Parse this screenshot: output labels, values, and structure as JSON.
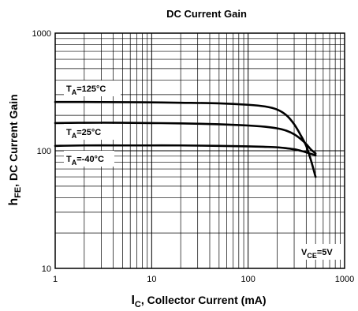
{
  "chart_data": {
    "type": "line",
    "title": "DC Current Gain",
    "xlabel": {
      "main": "I",
      "sub": "C",
      "rest": ", Collector Current (mA)"
    },
    "ylabel": {
      "main": "h",
      "sub": "FE",
      "rest": ", DC Current Gain"
    },
    "x_scale": "log",
    "y_scale": "log",
    "xlim": [
      1,
      1000
    ],
    "ylim": [
      10,
      1000
    ],
    "x_ticks": [
      1,
      10,
      100,
      1000
    ],
    "y_ticks": [
      10,
      100,
      1000
    ],
    "x_tick_labels": [
      "1",
      "10",
      "100",
      "1000"
    ],
    "y_tick_labels": [
      "10",
      "100",
      "1000"
    ],
    "grid": true,
    "annotation": {
      "main": "V",
      "sub": "CE",
      "rest": "=5V"
    },
    "series": [
      {
        "name": "T_A=125°C",
        "label": {
          "main": "T",
          "sub": "A",
          "rest": "=125°C"
        },
        "x": [
          1,
          2,
          5,
          10,
          20,
          50,
          100,
          150,
          200,
          250,
          300,
          350,
          400,
          450,
          500
        ],
        "y": [
          260,
          260,
          259,
          258,
          256,
          253,
          246,
          238,
          224,
          200,
          168,
          136,
          110,
          82,
          60
        ]
      },
      {
        "name": "T_A=25°C",
        "label": {
          "main": "T",
          "sub": "A",
          "rest": "=25°C"
        },
        "x": [
          1,
          2,
          5,
          10,
          20,
          50,
          100,
          150,
          200,
          250,
          300,
          350,
          400,
          450,
          500
        ],
        "y": [
          172,
          173,
          173,
          172,
          171,
          168,
          164,
          160,
          155,
          148,
          138,
          126,
          114,
          102,
          95
        ]
      },
      {
        "name": "T_A=-40°C",
        "label": {
          "main": "T",
          "sub": "A",
          "rest": "=-40°C"
        },
        "x": [
          1,
          2,
          5,
          10,
          20,
          50,
          100,
          150,
          200,
          250,
          300,
          350,
          400,
          450,
          500
        ],
        "y": [
          110,
          111,
          111,
          111,
          111,
          110,
          109,
          108,
          107,
          105,
          103,
          100,
          97,
          94,
          92
        ]
      }
    ]
  }
}
